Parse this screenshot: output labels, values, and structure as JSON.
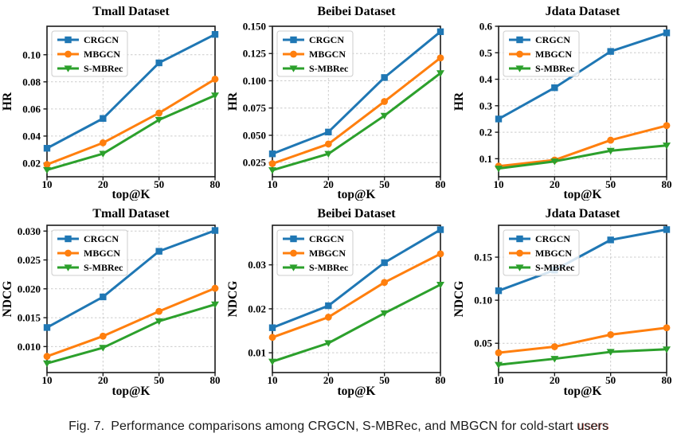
{
  "caption": {
    "label": "Fig. 7.",
    "body": "Performance comparisons among CRGCN, S-MBRec, and MBGCN for cold-start",
    "last_word": "users"
  },
  "colors": {
    "crgcn": "#1f77b4",
    "mbgcn": "#ff7f0e",
    "smbrec": "#2ca02c",
    "frame": "#1a1a1a",
    "grid": "#cccccc",
    "legend_border": "#cccccc"
  },
  "legend_entries": [
    "CRGCN",
    "MBGCN",
    "S-MBRec"
  ],
  "chart_data": [
    {
      "type": "line",
      "row": 0,
      "title": "Tmall Dataset",
      "xlabel": "top@K",
      "ylabel": "HR",
      "grid": true,
      "legend_position": "upper left",
      "x_ticks": {
        "values": [
          10,
          20,
          50,
          80
        ],
        "labels": [
          "10",
          "20",
          "50",
          "80"
        ]
      },
      "y_ticks": {
        "values": [
          0.02,
          0.04,
          0.06,
          0.08,
          0.1
        ],
        "labels": [
          "0.02",
          "0.04",
          "0.06",
          "0.08",
          "0.10"
        ]
      },
      "ylim": [
        0.01,
        0.121
      ],
      "series": [
        {
          "name": "CRGCN",
          "marker": "square",
          "color": "#1f77b4",
          "values": [
            0.031,
            0.053,
            0.094,
            0.115
          ]
        },
        {
          "name": "MBGCN",
          "marker": "circle",
          "color": "#ff7f0e",
          "values": [
            0.019,
            0.035,
            0.057,
            0.082
          ]
        },
        {
          "name": "S-MBRec",
          "marker": "triangle",
          "color": "#2ca02c",
          "values": [
            0.015,
            0.027,
            0.052,
            0.07
          ]
        }
      ]
    },
    {
      "type": "line",
      "row": 0,
      "title": "Beibei Dataset",
      "xlabel": "top@K",
      "ylabel": "HR",
      "grid": true,
      "legend_position": "upper left",
      "x_ticks": {
        "values": [
          10,
          20,
          50,
          80
        ],
        "labels": [
          "10",
          "20",
          "50",
          "80"
        ]
      },
      "y_ticks": {
        "values": [
          0.025,
          0.05,
          0.075,
          0.1,
          0.125,
          0.15
        ],
        "labels": [
          "0.025",
          "0.050",
          "0.075",
          "0.100",
          "0.125",
          "0.150"
        ]
      },
      "ylim": [
        0.012,
        0.15
      ],
      "series": [
        {
          "name": "CRGCN",
          "marker": "square",
          "color": "#1f77b4",
          "values": [
            0.033,
            0.053,
            0.103,
            0.145
          ]
        },
        {
          "name": "MBGCN",
          "marker": "circle",
          "color": "#ff7f0e",
          "values": [
            0.024,
            0.042,
            0.081,
            0.121
          ]
        },
        {
          "name": "S-MBRec",
          "marker": "triangle",
          "color": "#2ca02c",
          "values": [
            0.018,
            0.033,
            0.068,
            0.107
          ]
        }
      ]
    },
    {
      "type": "line",
      "row": 0,
      "title": "Jdata Dataset",
      "xlabel": "top@K",
      "ylabel": "HR",
      "grid": true,
      "legend_position": "upper left",
      "x_ticks": {
        "values": [
          10,
          20,
          50,
          80
        ],
        "labels": [
          "10",
          "20",
          "50",
          "80"
        ]
      },
      "y_ticks": {
        "values": [
          0.1,
          0.2,
          0.3,
          0.4,
          0.5,
          0.6
        ],
        "labels": [
          "0.1",
          "0.2",
          "0.3",
          "0.4",
          "0.5",
          "0.6"
        ]
      },
      "ylim": [
        0.032,
        0.6
      ],
      "series": [
        {
          "name": "CRGCN",
          "marker": "square",
          "color": "#1f77b4",
          "values": [
            0.25,
            0.368,
            0.505,
            0.575
          ]
        },
        {
          "name": "MBGCN",
          "marker": "circle",
          "color": "#ff7f0e",
          "values": [
            0.072,
            0.095,
            0.17,
            0.225
          ]
        },
        {
          "name": "S-MBRec",
          "marker": "triangle",
          "color": "#2ca02c",
          "values": [
            0.063,
            0.09,
            0.13,
            0.15
          ]
        }
      ]
    },
    {
      "type": "line",
      "row": 1,
      "title": "Tmall Dataset",
      "xlabel": "top@K",
      "ylabel": "NDCG",
      "grid": true,
      "legend_position": "upper left",
      "x_ticks": {
        "values": [
          10,
          20,
          50,
          80
        ],
        "labels": [
          "10",
          "20",
          "50",
          "80"
        ]
      },
      "y_ticks": {
        "values": [
          0.01,
          0.015,
          0.02,
          0.025,
          0.03
        ],
        "labels": [
          "0.010",
          "0.015",
          "0.020",
          "0.025",
          "0.030"
        ]
      },
      "ylim": [
        0.0055,
        0.031
      ],
      "series": [
        {
          "name": "CRGCN",
          "marker": "square",
          "color": "#1f77b4",
          "values": [
            0.0133,
            0.0186,
            0.0265,
            0.0301
          ]
        },
        {
          "name": "MBGCN",
          "marker": "circle",
          "color": "#ff7f0e",
          "values": [
            0.0083,
            0.0118,
            0.0161,
            0.0201
          ]
        },
        {
          "name": "S-MBRec",
          "marker": "triangle",
          "color": "#2ca02c",
          "values": [
            0.0071,
            0.0098,
            0.0144,
            0.0173
          ]
        }
      ]
    },
    {
      "type": "line",
      "row": 1,
      "title": "Beibei Dataset",
      "xlabel": "top@K",
      "ylabel": "NDCG",
      "grid": true,
      "legend_position": "upper left",
      "x_ticks": {
        "values": [
          10,
          20,
          50,
          80
        ],
        "labels": [
          "10",
          "20",
          "50",
          "80"
        ]
      },
      "y_ticks": {
        "values": [
          0.01,
          0.02,
          0.03
        ],
        "labels": [
          "0.01",
          "0.02",
          "0.03"
        ]
      },
      "ylim": [
        0.0055,
        0.039
      ],
      "series": [
        {
          "name": "CRGCN",
          "marker": "square",
          "color": "#1f77b4",
          "values": [
            0.0157,
            0.0207,
            0.0305,
            0.038
          ]
        },
        {
          "name": "MBGCN",
          "marker": "circle",
          "color": "#ff7f0e",
          "values": [
            0.0135,
            0.0181,
            0.026,
            0.0325
          ]
        },
        {
          "name": "S-MBRec",
          "marker": "triangle",
          "color": "#2ca02c",
          "values": [
            0.008,
            0.0122,
            0.019,
            0.0255
          ]
        }
      ]
    },
    {
      "type": "line",
      "row": 1,
      "title": "Jdata Dataset",
      "xlabel": "top@K",
      "ylabel": "NDCG",
      "grid": true,
      "legend_position": "upper left",
      "x_ticks": {
        "values": [
          10,
          20,
          50,
          80
        ],
        "labels": [
          "10",
          "20",
          "50",
          "80"
        ]
      },
      "y_ticks": {
        "values": [
          0.05,
          0.1,
          0.15
        ],
        "labels": [
          "0.05",
          "0.10",
          "0.15"
        ]
      },
      "ylim": [
        0.016,
        0.187
      ],
      "series": [
        {
          "name": "CRGCN",
          "marker": "square",
          "color": "#1f77b4",
          "values": [
            0.111,
            0.135,
            0.17,
            0.182
          ]
        },
        {
          "name": "MBGCN",
          "marker": "circle",
          "color": "#ff7f0e",
          "values": [
            0.039,
            0.046,
            0.06,
            0.068
          ]
        },
        {
          "name": "S-MBRec",
          "marker": "triangle",
          "color": "#2ca02c",
          "values": [
            0.025,
            0.032,
            0.04,
            0.043
          ]
        }
      ]
    }
  ]
}
